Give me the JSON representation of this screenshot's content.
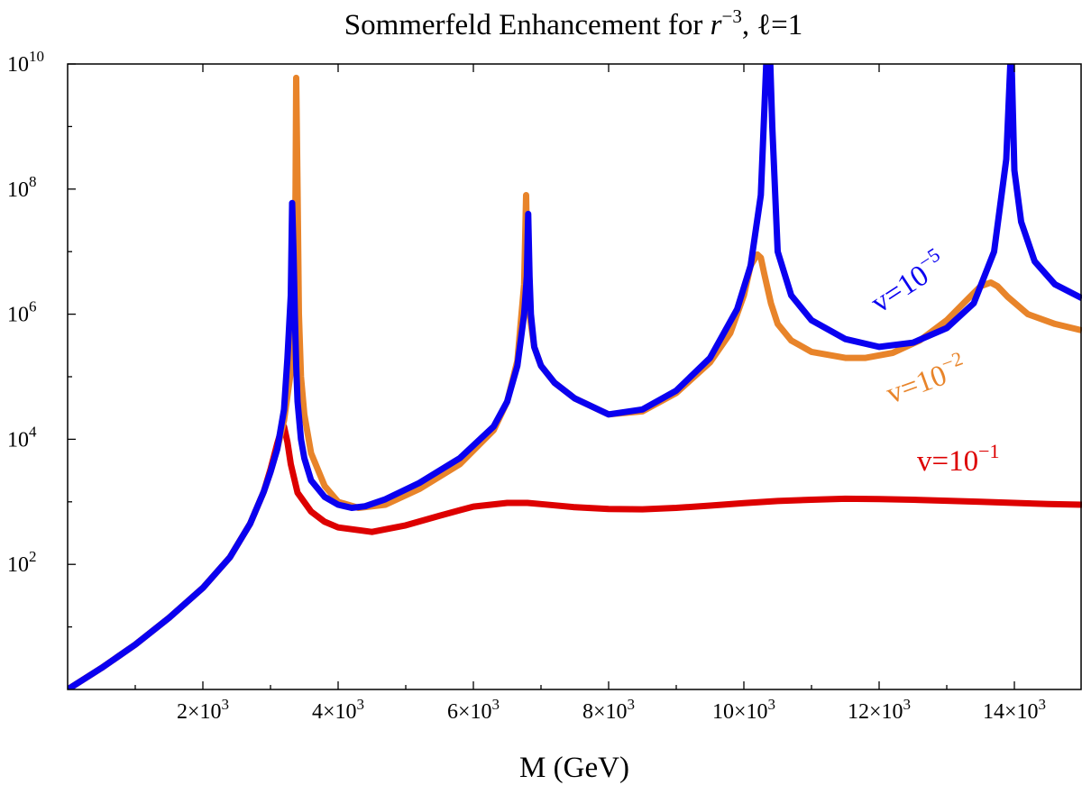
{
  "chart_data": {
    "type": "line",
    "title": "Sommerfeld Enhancement for r^{-3}, ℓ=1",
    "title_parts": {
      "prefix": "Sommerfeld Enhancement for ",
      "r": "r",
      "exp": "−3",
      "suffix": ", ℓ=1"
    },
    "xlabel": "M (GeV)",
    "ylabel": "",
    "xscale": "linear",
    "yscale": "log",
    "xlim": [
      0,
      15000
    ],
    "ylim": [
      1,
      10000000000
    ],
    "grid": false,
    "x_ticks": [
      {
        "value": 2000,
        "base": "2×10",
        "exp": "3"
      },
      {
        "value": 4000,
        "base": "4×10",
        "exp": "3"
      },
      {
        "value": 6000,
        "base": "6×10",
        "exp": "3"
      },
      {
        "value": 8000,
        "base": "8×10",
        "exp": "3"
      },
      {
        "value": 10000,
        "base": "10×10",
        "exp": "3"
      },
      {
        "value": 12000,
        "base": "12×10",
        "exp": "3"
      },
      {
        "value": 14000,
        "base": "14×10",
        "exp": "3"
      }
    ],
    "y_ticks": [
      {
        "value": 100,
        "base": "10",
        "exp": "2"
      },
      {
        "value": 10000,
        "base": "10",
        "exp": "4"
      },
      {
        "value": 1000000,
        "base": "10",
        "exp": "6"
      },
      {
        "value": 100000000,
        "base": "10",
        "exp": "8"
      },
      {
        "value": 10000000000,
        "base": "10",
        "exp": "10"
      }
    ],
    "series": [
      {
        "name": "v=10^-1",
        "label_base": "v=10",
        "label_exp": "−1",
        "color": "#dd0000",
        "label_position": "right, above curve",
        "x": [
          0,
          500,
          1000,
          1500,
          2000,
          2400,
          2700,
          2900,
          3000,
          3100,
          3150,
          3200,
          3250,
          3300,
          3400,
          3600,
          3800,
          4000,
          4500,
          5000,
          5500,
          6000,
          6500,
          6800,
          7000,
          7500,
          8000,
          8500,
          9000,
          9500,
          10000,
          10500,
          11000,
          11500,
          12000,
          12500,
          13000,
          13500,
          14000,
          14500,
          15000
        ],
        "y": [
          1,
          2.2,
          5.2,
          14,
          42,
          130,
          450,
          1450,
          3300,
          8500,
          13000,
          16000,
          9000,
          4000,
          1400,
          700,
          480,
          390,
          330,
          420,
          600,
          840,
          960,
          960,
          920,
          820,
          770,
          760,
          800,
          870,
          950,
          1030,
          1080,
          1120,
          1110,
          1080,
          1040,
          1000,
          960,
          920,
          900
        ]
      },
      {
        "name": "v=10^-2",
        "label_base": "v=10",
        "label_exp": "−2",
        "color": "#e8842a",
        "label_position": "right, below curve",
        "x": [
          0,
          500,
          1000,
          1500,
          2000,
          2400,
          2700,
          2900,
          3000,
          3100,
          3200,
          3300,
          3350,
          3370,
          3380,
          3400,
          3420,
          3450,
          3500,
          3600,
          3800,
          4000,
          4300,
          4700,
          5200,
          5800,
          6300,
          6500,
          6650,
          6750,
          6780,
          6800,
          6830,
          6900,
          7000,
          7200,
          7500,
          8000,
          8500,
          9000,
          9500,
          9800,
          10000,
          10100,
          10200,
          10250,
          10300,
          10400,
          10500,
          10700,
          11000,
          11500,
          11800,
          12200,
          12600,
          13000,
          13300,
          13500,
          13650,
          13750,
          13900,
          14200,
          14600,
          15000
        ],
        "y": [
          1,
          2.2,
          5.2,
          14,
          42,
          130,
          450,
          1450,
          3000,
          7000,
          20000,
          120000,
          1000000,
          100000000,
          6000000000,
          100000000,
          1000000,
          100000,
          25000,
          6000,
          1800,
          1000,
          800,
          900,
          1600,
          4000,
          14000,
          40000,
          180000,
          3000000,
          80000000,
          4000000,
          1000000,
          300000,
          150000,
          80000,
          45000,
          25000,
          28000,
          55000,
          170000,
          500000,
          2000000,
          6000000,
          9000000,
          8000000,
          4500000,
          1500000,
          700000,
          380000,
          250000,
          200000,
          200000,
          240000,
          380000,
          800000,
          1700000,
          2800000,
          3200000,
          2800000,
          1900000,
          1000000,
          700000,
          550000
        ]
      },
      {
        "name": "v=10^-5",
        "label_base": "v=10",
        "label_exp": "−5",
        "color": "#0a00f0",
        "label_position": "right, rotated along curve",
        "x": [
          0,
          500,
          1000,
          1500,
          2000,
          2400,
          2700,
          2900,
          3000,
          3100,
          3200,
          3250,
          3300,
          3320,
          3340,
          3360,
          3380,
          3400,
          3450,
          3500,
          3600,
          3800,
          4000,
          4200,
          4400,
          4700,
          5200,
          5800,
          6300,
          6500,
          6650,
          6750,
          6790,
          6810,
          6830,
          6850,
          6900,
          7000,
          7200,
          7500,
          8000,
          8500,
          9000,
          9500,
          9900,
          10100,
          10250,
          10330,
          10370,
          10390,
          10420,
          10500,
          10700,
          11000,
          11500,
          12000,
          12500,
          13000,
          13400,
          13700,
          13880,
          13940,
          13960,
          14000,
          14100,
          14300,
          14600,
          15000
        ],
        "y": [
          1,
          2.2,
          5.2,
          14,
          42,
          130,
          450,
          1450,
          3000,
          7000,
          30000,
          200000,
          2000000,
          60000000,
          10000000,
          1000000,
          150000,
          40000,
          10000,
          5000,
          2200,
          1200,
          900,
          800,
          850,
          1100,
          2000,
          5000,
          16000,
          40000,
          150000,
          1000000,
          4000000,
          40000000,
          4000000,
          1000000,
          300000,
          150000,
          80000,
          45000,
          25000,
          30000,
          60000,
          200000,
          1200000,
          6000000,
          80000000,
          10000000000,
          10000000000,
          10000000000,
          1000000000,
          10000000,
          2000000,
          800000,
          400000,
          300000,
          350000,
          600000,
          1500000,
          10000000,
          300000000,
          10000000000,
          10000000000,
          200000000,
          30000000,
          7000000,
          3000000,
          1800000
        ]
      }
    ]
  }
}
